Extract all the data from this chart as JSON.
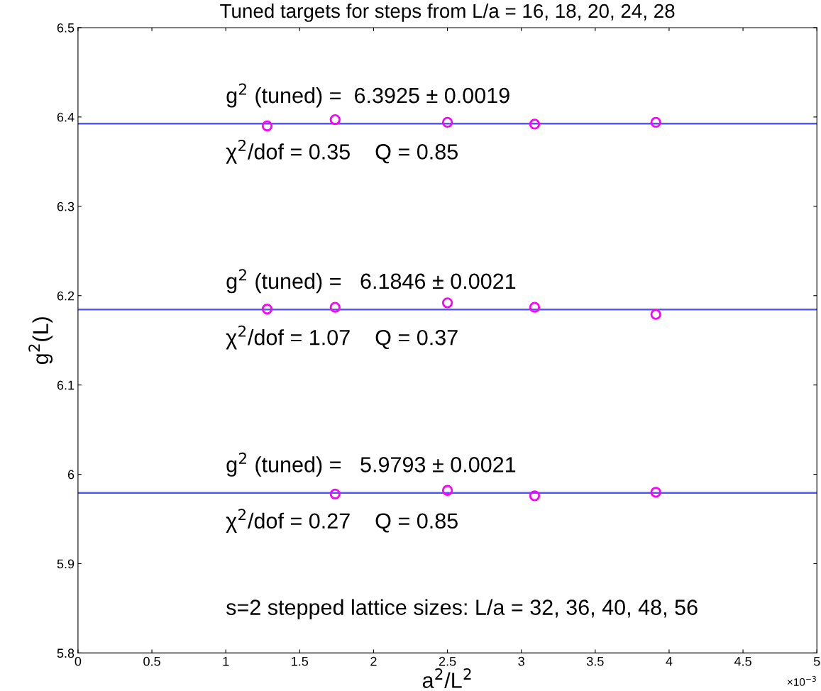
{
  "chart_data": {
    "type": "scatter",
    "title": "Tuned targets for steps from L/a = 16, 18, 20, 24, 28",
    "xlabel": "a$^{2}$/L$^{2}$",
    "ylabel": "g$^{2}$(L)",
    "marker": "circle",
    "grid": false,
    "xlim": [
      0,
      5
    ],
    "xticks": [
      0,
      0.5,
      1,
      1.5,
      2,
      2.5,
      3,
      3.5,
      4,
      4.5,
      5
    ],
    "ylim": [
      5.8,
      6.5
    ],
    "yticks": [
      5.8,
      5.9,
      6,
      6.1,
      6.2,
      6.3,
      6.4,
      6.5
    ],
    "series": [
      {
        "color": "#ff00ff",
        "x": [
          1.28,
          1.74,
          2.5,
          3.09,
          3.91
        ],
        "values": [
          6.39,
          6.397,
          6.394,
          6.392,
          6.394
        ]
      },
      {
        "color": "#ff00ff",
        "x": [
          1.28,
          1.74,
          2.5,
          3.09,
          3.91
        ],
        "values": [
          6.185,
          6.187,
          6.192,
          6.187,
          6.179
        ]
      },
      {
        "color": "#ff00ff",
        "x": [
          1.74,
          2.5,
          3.09,
          3.91
        ],
        "values": [
          5.978,
          5.982,
          5.976,
          5.98
        ]
      }
    ],
    "ref_lines": [
      {
        "axis": "y",
        "value": 6.3925,
        "color": "#5555ff"
      },
      {
        "axis": "y",
        "value": 6.1846,
        "color": "#5555ff"
      },
      {
        "axis": "y",
        "value": 5.9793,
        "color": "#5555ff"
      }
    ],
    "annotations": [
      "g$^{2}$ (tuned) =  6.3925 ± 0.0019",
      "χ$^{2}$/dof = 0.35    Q = 0.85",
      "g$^{2}$ (tuned) =   6.1846 ± 0.0021",
      "χ$^{2}$/dof = 1.07    Q = 0.37",
      "g$^{2}$ (tuned) =   5.9793 ± 0.0021",
      "χ$^{2}$/dof = 0.27    Q = 0.85",
      "s=2 stepped lattice sizes: L/a = 32, 36, 40, 48, 56",
      "×10$^{−3}$"
    ]
  }
}
